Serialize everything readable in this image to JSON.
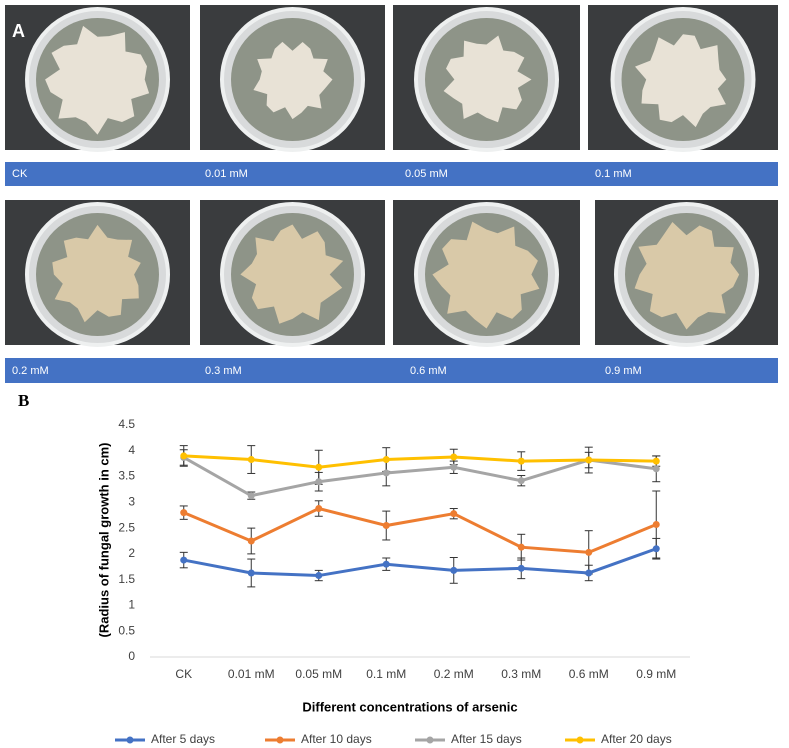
{
  "panel_a": {
    "label": "A",
    "row1_labels": [
      "CK",
      "0.01  mM",
      "0.05 mM",
      "0.1 mM"
    ],
    "row2_labels": [
      "0.2 mM",
      "0.3 mM",
      "0.6 mM",
      "0.9 mM"
    ]
  },
  "panel_b_label": "B",
  "chart_data": {
    "type": "line",
    "y_label": "(Radius of fungal growth in cm)",
    "x_label": "Different concentrations of arsenic",
    "categories": [
      "CK",
      "0.01 mM",
      "0.05 mM",
      "0.1 mM",
      "0.2 mM",
      "0.3 mM",
      "0.6 mM",
      "0.9 mM"
    ],
    "ylim": [
      0,
      4.5
    ],
    "yticks": [
      0,
      0.5,
      1,
      1.5,
      2,
      2.5,
      3,
      3.5,
      4,
      4.5
    ],
    "grid": false,
    "legend": "bottom",
    "series": [
      {
        "name": "After 5 days",
        "color": "#4472c4",
        "values": [
          1.88,
          1.63,
          1.58,
          1.8,
          1.68,
          1.72,
          1.63,
          2.1
        ],
        "errors": [
          0.15,
          0.27,
          0.1,
          0.12,
          0.25,
          0.2,
          0.15,
          0.2
        ]
      },
      {
        "name": "After 10 days",
        "color": "#ed7d31",
        "values": [
          2.8,
          2.25,
          2.88,
          2.55,
          2.78,
          2.13,
          2.03,
          2.57
        ],
        "errors": [
          0.13,
          0.25,
          0.15,
          0.28,
          0.1,
          0.25,
          0.42,
          0.65
        ]
      },
      {
        "name": "After 15 days",
        "color": "#a5a5a5",
        "values": [
          3.87,
          3.13,
          3.4,
          3.57,
          3.68,
          3.42,
          3.82,
          3.65
        ],
        "errors": [
          0.15,
          0.07,
          0.18,
          0.25,
          0.12,
          0.1,
          0.15,
          0.25
        ]
      },
      {
        "name": "After 20 days",
        "color": "#ffc000",
        "values": [
          3.9,
          3.83,
          3.68,
          3.83,
          3.88,
          3.8,
          3.82,
          3.8
        ],
        "errors": [
          0.2,
          0.27,
          0.33,
          0.23,
          0.15,
          0.18,
          0.25,
          0.1
        ]
      }
    ]
  }
}
